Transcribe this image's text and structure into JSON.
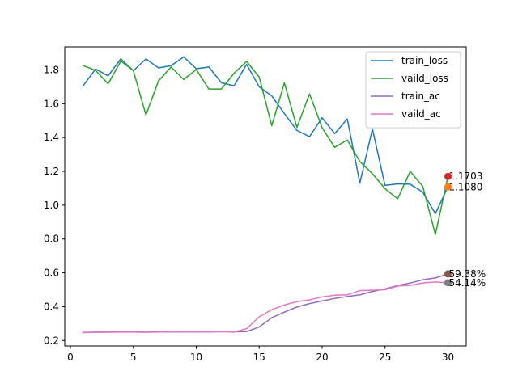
{
  "chart_data": {
    "type": "line",
    "x": [
      1,
      2,
      3,
      4,
      5,
      6,
      7,
      8,
      9,
      10,
      11,
      12,
      13,
      14,
      15,
      16,
      17,
      18,
      19,
      20,
      21,
      22,
      23,
      24,
      25,
      26,
      27,
      28,
      29,
      30
    ],
    "xlim": [
      -0.45,
      31.45
    ],
    "ylim": [
      0.168,
      1.936
    ],
    "xticks": [
      0,
      5,
      10,
      15,
      20,
      25,
      30
    ],
    "yticks": [
      0.2,
      0.4,
      0.6,
      0.8,
      1.0,
      1.2,
      1.4,
      1.6,
      1.8
    ],
    "xtick_labels": [
      "0",
      "5",
      "10",
      "15",
      "20",
      "25",
      "30"
    ],
    "ytick_labels": [
      "0.2",
      "0.4",
      "0.6",
      "0.8",
      "1.0",
      "1.2",
      "1.4",
      "1.6",
      "1.8"
    ],
    "grid": false,
    "legend_position": "upper-right",
    "series": [
      {
        "name": "train_loss",
        "color": "#1f77b4",
        "values": [
          1.705,
          1.805,
          1.765,
          1.865,
          1.795,
          1.865,
          1.812,
          1.825,
          1.877,
          1.807,
          1.817,
          1.724,
          1.706,
          1.833,
          1.7,
          1.646,
          1.542,
          1.442,
          1.405,
          1.517,
          1.423,
          1.51,
          1.131,
          1.451,
          1.117,
          1.126,
          1.124,
          1.077,
          0.95,
          1.108
        ]
      },
      {
        "name": "vaild_loss",
        "color": "#2ca02c",
        "values": [
          1.826,
          1.797,
          1.718,
          1.852,
          1.796,
          1.533,
          1.735,
          1.817,
          1.743,
          1.802,
          1.687,
          1.687,
          1.78,
          1.85,
          1.758,
          1.47,
          1.723,
          1.46,
          1.658,
          1.458,
          1.342,
          1.386,
          1.258,
          1.186,
          1.098,
          1.038,
          1.2,
          1.111,
          0.827,
          1.17
        ]
      },
      {
        "name": "train_ac",
        "color": "#9467bd",
        "values": [
          0.248,
          0.25,
          0.25,
          0.251,
          0.251,
          0.25,
          0.251,
          0.251,
          0.251,
          0.251,
          0.251,
          0.252,
          0.252,
          0.253,
          0.28,
          0.335,
          0.368,
          0.398,
          0.418,
          0.434,
          0.449,
          0.46,
          0.47,
          0.49,
          0.505,
          0.525,
          0.54,
          0.559,
          0.57,
          0.5938
        ]
      },
      {
        "name": "vaild_ac",
        "color": "#e377c2",
        "values": [
          0.247,
          0.248,
          0.249,
          0.25,
          0.25,
          0.249,
          0.25,
          0.252,
          0.252,
          0.252,
          0.251,
          0.253,
          0.25,
          0.27,
          0.34,
          0.382,
          0.41,
          0.43,
          0.44,
          0.458,
          0.468,
          0.47,
          0.495,
          0.497,
          0.5,
          0.522,
          0.526,
          0.54,
          0.546,
          0.5414
        ]
      }
    ],
    "end_markers": [
      {
        "series": "vaild_loss",
        "x": 30,
        "y": 1.1703,
        "label": "1.1703",
        "color": "#d62728"
      },
      {
        "series": "train_loss",
        "x": 30,
        "y": 1.108,
        "label": "1.1080",
        "color": "#ff7f0e"
      },
      {
        "series": "train_ac",
        "x": 30,
        "y": 0.5938,
        "label": "59.38%",
        "color": "#8c564b"
      },
      {
        "series": "vaild_ac",
        "x": 30,
        "y": 0.5414,
        "label": "54.14%",
        "color": "#7f7f7f"
      }
    ]
  }
}
